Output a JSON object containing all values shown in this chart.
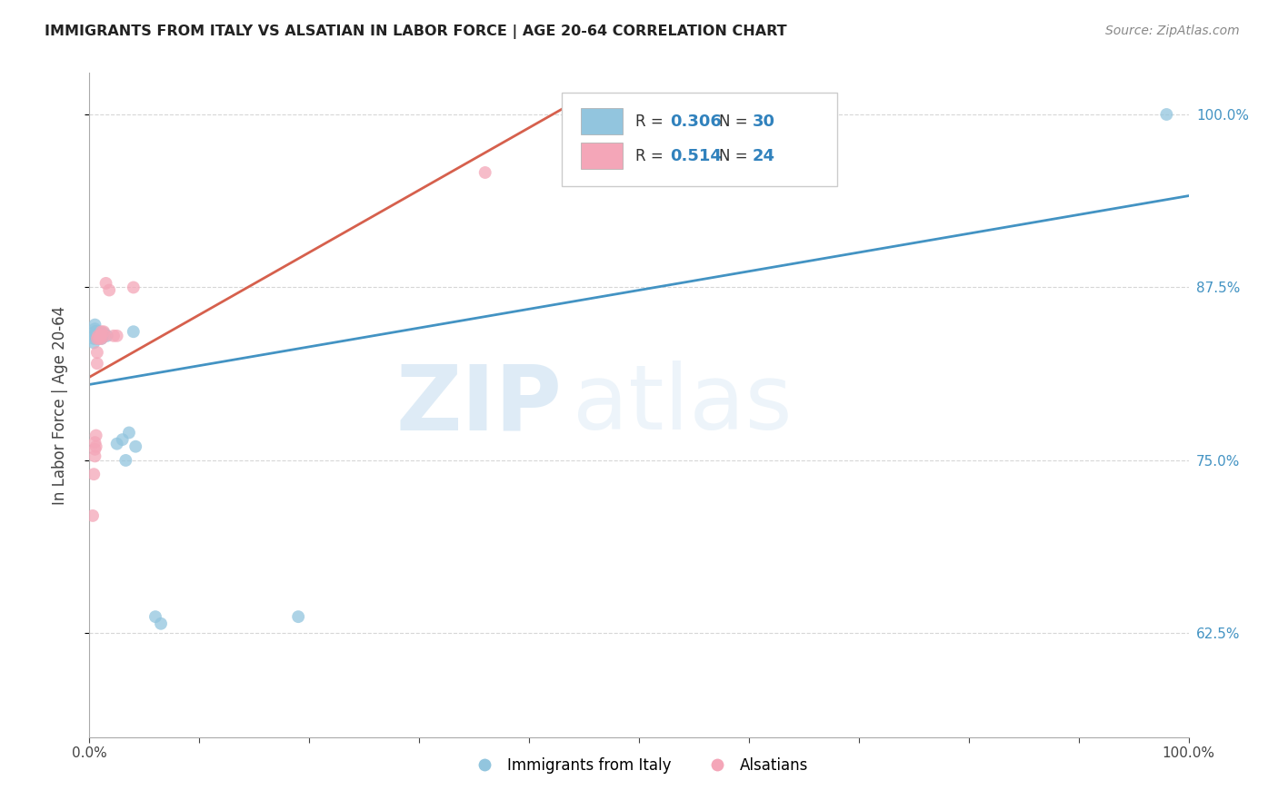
{
  "title": "IMMIGRANTS FROM ITALY VS ALSATIAN IN LABOR FORCE | AGE 20-64 CORRELATION CHART",
  "source": "Source: ZipAtlas.com",
  "ylabel": "In Labor Force | Age 20-64",
  "xlim": [
    0.0,
    1.0
  ],
  "ylim": [
    0.55,
    1.03
  ],
  "ytick_positions": [
    0.625,
    0.75,
    0.875,
    1.0
  ],
  "ytick_labels": [
    "62.5%",
    "75.0%",
    "87.5%",
    "100.0%"
  ],
  "legend_label1": "Immigrants from Italy",
  "legend_label2": "Alsatians",
  "R1": "0.306",
  "N1": "30",
  "R2": "0.514",
  "N2": "24",
  "color_blue": "#92c5de",
  "color_pink": "#f4a6b8",
  "line_color_blue": "#4393c3",
  "line_color_pink": "#d6604d",
  "watermark_zip": "ZIP",
  "watermark_atlas": "atlas",
  "italy_x": [
    0.004,
    0.004,
    0.005,
    0.005,
    0.005,
    0.005,
    0.006,
    0.006,
    0.007,
    0.007,
    0.008,
    0.008,
    0.009,
    0.009,
    0.01,
    0.01,
    0.011,
    0.012,
    0.013,
    0.016,
    0.025,
    0.03,
    0.033,
    0.036,
    0.04,
    0.042,
    0.06,
    0.065,
    0.19,
    0.98
  ],
  "italy_y": [
    0.835,
    0.838,
    0.84,
    0.843,
    0.845,
    0.848,
    0.84,
    0.843,
    0.838,
    0.842,
    0.838,
    0.84,
    0.843,
    0.84,
    0.84,
    0.842,
    0.838,
    0.84,
    0.842,
    0.84,
    0.762,
    0.765,
    0.75,
    0.77,
    0.843,
    0.76,
    0.637,
    0.632,
    0.637,
    1.0
  ],
  "alsatian_x": [
    0.003,
    0.004,
    0.005,
    0.005,
    0.005,
    0.006,
    0.006,
    0.007,
    0.007,
    0.007,
    0.008,
    0.009,
    0.01,
    0.01,
    0.011,
    0.011,
    0.013,
    0.014,
    0.015,
    0.018,
    0.022,
    0.025,
    0.04,
    0.36
  ],
  "alsatian_y": [
    0.71,
    0.74,
    0.753,
    0.758,
    0.763,
    0.76,
    0.768,
    0.82,
    0.828,
    0.838,
    0.84,
    0.838,
    0.84,
    0.84,
    0.843,
    0.838,
    0.843,
    0.84,
    0.878,
    0.873,
    0.84,
    0.84,
    0.875,
    0.958
  ]
}
